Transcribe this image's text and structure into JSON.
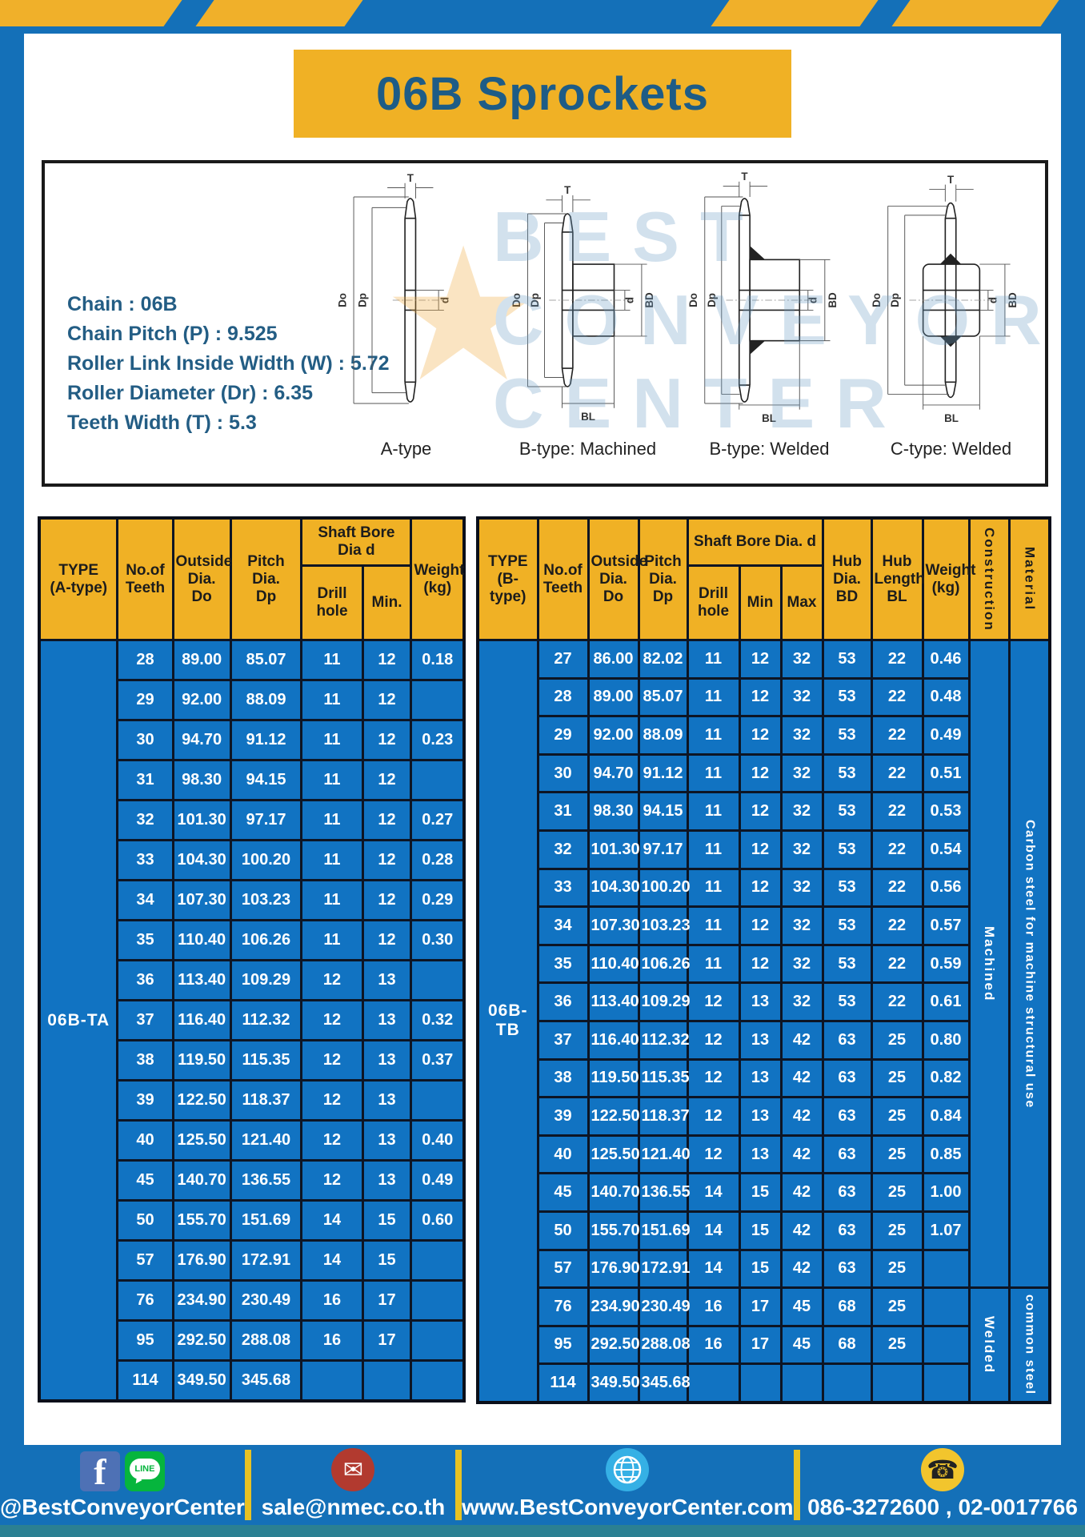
{
  "title": "06B Sprockets",
  "specs": {
    "separator": ":",
    "items": [
      {
        "label": "Chain",
        "value": "06B"
      },
      {
        "label": "Chain Pitch (P)",
        "value": "9.525"
      },
      {
        "label": "Roller Link Inside Width (W)",
        "value": "5.72"
      },
      {
        "label": "Roller Diameter (Dr)",
        "value": "6.35"
      },
      {
        "label": "Teeth Width (T)",
        "value": "5.3"
      }
    ]
  },
  "drawings": {
    "watermark_text": "BEST\nCONVEYOR\nCENTER",
    "watermark_logo": "★",
    "captions": [
      "A-type",
      "B-type: Machined",
      "B-type: Welded",
      "C-type: Welded"
    ],
    "dims": {
      "t": "T",
      "dout": "Do",
      "dp": "Dp",
      "d": "d",
      "bd": "BD",
      "bl": "BL"
    }
  },
  "table_a": {
    "type_label": "06B-TA",
    "headers": {
      "type": "TYPE\n(A-type)",
      "teeth": "No.of\nTeeth",
      "outside": "Outside\nDia.\nDo",
      "pitch": "Pitch Dia.\nDp",
      "shaft_bore": "Shaft Bore Dia d",
      "drill": "Drill hole",
      "min": "Min.",
      "weight": "Weight\n(kg)"
    },
    "rows": [
      [
        "28",
        "89.00",
        "85.07",
        "11",
        "12",
        "0.18"
      ],
      [
        "29",
        "92.00",
        "88.09",
        "11",
        "12",
        ""
      ],
      [
        "30",
        "94.70",
        "91.12",
        "11",
        "12",
        "0.23"
      ],
      [
        "31",
        "98.30",
        "94.15",
        "11",
        "12",
        ""
      ],
      [
        "32",
        "101.30",
        "97.17",
        "11",
        "12",
        "0.27"
      ],
      [
        "33",
        "104.30",
        "100.20",
        "11",
        "12",
        "0.28"
      ],
      [
        "34",
        "107.30",
        "103.23",
        "11",
        "12",
        "0.29"
      ],
      [
        "35",
        "110.40",
        "106.26",
        "11",
        "12",
        "0.30"
      ],
      [
        "36",
        "113.40",
        "109.29",
        "12",
        "13",
        ""
      ],
      [
        "37",
        "116.40",
        "112.32",
        "12",
        "13",
        "0.32"
      ],
      [
        "38",
        "119.50",
        "115.35",
        "12",
        "13",
        "0.37"
      ],
      [
        "39",
        "122.50",
        "118.37",
        "12",
        "13",
        ""
      ],
      [
        "40",
        "125.50",
        "121.40",
        "12",
        "13",
        "0.40"
      ],
      [
        "45",
        "140.70",
        "136.55",
        "12",
        "13",
        "0.49"
      ],
      [
        "50",
        "155.70",
        "151.69",
        "14",
        "15",
        "0.60"
      ],
      [
        "57",
        "176.90",
        "172.91",
        "14",
        "15",
        ""
      ],
      [
        "76",
        "234.90",
        "230.49",
        "16",
        "17",
        ""
      ],
      [
        "95",
        "292.50",
        "288.08",
        "16",
        "17",
        ""
      ],
      [
        "114",
        "349.50",
        "345.68",
        "",
        "",
        ""
      ]
    ]
  },
  "table_b": {
    "type_label": "06B-TB",
    "headers": {
      "type": "TYPE\n(B-type)",
      "teeth": "No.of\nTeeth",
      "outside": "Outside\nDia.\nDo",
      "pitch": "Pitch\nDia.\nDp",
      "shaft_bore": "Shaft Bore Dia. d",
      "drill": "Drill hole",
      "min": "Min",
      "max": "Max",
      "hub_dia": "Hub\nDia.\nBD",
      "hub_len": "Hub\nLength\nBL",
      "weight": "Weight\n(kg)",
      "construction": "Construction",
      "material": "Material"
    },
    "rows": [
      [
        "27",
        "86.00",
        "82.02",
        "11",
        "12",
        "32",
        "53",
        "22",
        "0.46"
      ],
      [
        "28",
        "89.00",
        "85.07",
        "11",
        "12",
        "32",
        "53",
        "22",
        "0.48"
      ],
      [
        "29",
        "92.00",
        "88.09",
        "11",
        "12",
        "32",
        "53",
        "22",
        "0.49"
      ],
      [
        "30",
        "94.70",
        "91.12",
        "11",
        "12",
        "32",
        "53",
        "22",
        "0.51"
      ],
      [
        "31",
        "98.30",
        "94.15",
        "11",
        "12",
        "32",
        "53",
        "22",
        "0.53"
      ],
      [
        "32",
        "101.30",
        "97.17",
        "11",
        "12",
        "32",
        "53",
        "22",
        "0.54"
      ],
      [
        "33",
        "104.30",
        "100.20",
        "11",
        "12",
        "32",
        "53",
        "22",
        "0.56"
      ],
      [
        "34",
        "107.30",
        "103.23",
        "11",
        "12",
        "32",
        "53",
        "22",
        "0.57"
      ],
      [
        "35",
        "110.40",
        "106.26",
        "11",
        "12",
        "32",
        "53",
        "22",
        "0.59"
      ],
      [
        "36",
        "113.40",
        "109.29",
        "12",
        "13",
        "32",
        "53",
        "22",
        "0.61"
      ],
      [
        "37",
        "116.40",
        "112.32",
        "12",
        "13",
        "42",
        "63",
        "25",
        "0.80"
      ],
      [
        "38",
        "119.50",
        "115.35",
        "12",
        "13",
        "42",
        "63",
        "25",
        "0.82"
      ],
      [
        "39",
        "122.50",
        "118.37",
        "12",
        "13",
        "42",
        "63",
        "25",
        "0.84"
      ],
      [
        "40",
        "125.50",
        "121.40",
        "12",
        "13",
        "42",
        "63",
        "25",
        "0.85"
      ],
      [
        "45",
        "140.70",
        "136.55",
        "14",
        "15",
        "42",
        "63",
        "25",
        "1.00"
      ],
      [
        "50",
        "155.70",
        "151.69",
        "14",
        "15",
        "42",
        "63",
        "25",
        "1.07"
      ],
      [
        "57",
        "176.90",
        "172.91",
        "14",
        "15",
        "42",
        "63",
        "25",
        ""
      ],
      [
        "76",
        "234.90",
        "230.49",
        "16",
        "17",
        "45",
        "68",
        "25",
        ""
      ],
      [
        "95",
        "292.50",
        "288.08",
        "16",
        "17",
        "45",
        "68",
        "25",
        ""
      ],
      [
        "114",
        "349.50",
        "345.68",
        "",
        "",
        "",
        "",
        "",
        ""
      ]
    ],
    "construction_groups": [
      {
        "label": "Machined",
        "span": 17
      },
      {
        "label": "Welded",
        "span": 3
      }
    ],
    "material_groups": [
      {
        "label": "Carbon steel for machine structural use",
        "span": 17
      },
      {
        "label": "common steel",
        "span": 3
      }
    ]
  },
  "footer": {
    "facebook_glyph": "f",
    "line_label": "LINE",
    "social_handle": "@BestConveyorCenter",
    "email_glyph": "✉",
    "email": "sale@nmec.co.th",
    "website": "www.BestConveyorCenter.com",
    "phone_glyph": "☎",
    "phones": "086-3272600 , 02-0017766"
  },
  "colors": {
    "frame_blue": "#1470b8",
    "stripe_yellow": "#f0b02a",
    "banner_yellow": "#f0b125",
    "title_blue": "#1e5c86",
    "spec_text_blue": "#235d84",
    "header_yellow": "#f0b125",
    "cell_blue": "#1173c2",
    "cell_border": "#0d1524",
    "divider_yellow": "#e8c222",
    "facebook_blue": "#4e71b5",
    "line_green": "#06b53d",
    "email_red": "#b23a2f",
    "globe_blue": "#35b0e5",
    "phone_yellow": "#f2c52d",
    "bottom_strip_teal": "#2b8092"
  }
}
